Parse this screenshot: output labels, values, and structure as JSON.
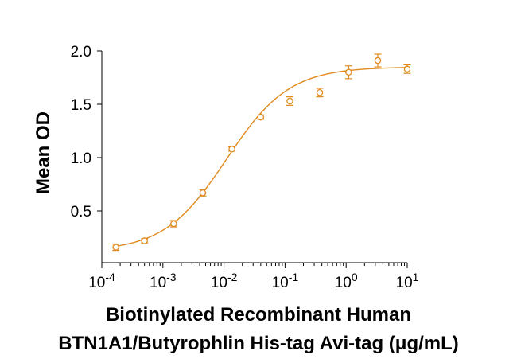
{
  "chart_data": {
    "type": "scatter",
    "title": "",
    "xlabel_line1": "Biotinylated Recombinant Human",
    "xlabel_line2": "BTN1A1/Butyrophlin His-tag Avi-tag (μg/mL)",
    "ylabel": "Mean OD",
    "x_scale": "log",
    "xlim": [
      0.0001,
      10
    ],
    "ylim": [
      0.1,
      2.0
    ],
    "x_ticks": [
      {
        "base": "10",
        "exp": "-4"
      },
      {
        "base": "10",
        "exp": "-3"
      },
      {
        "base": "10",
        "exp": "-2"
      },
      {
        "base": "10",
        "exp": "-1"
      },
      {
        "base": "10",
        "exp": "0"
      },
      {
        "base": "10",
        "exp": "1"
      }
    ],
    "y_ticks": [
      "0.5",
      "1.0",
      "1.5",
      "2.0"
    ],
    "grid": false,
    "color": "#E08A1E",
    "series": [
      {
        "x": [
          0.00017,
          0.0005,
          0.0015,
          0.0045,
          0.0135,
          0.04,
          0.12,
          0.37,
          1.1,
          3.3,
          10
        ],
        "y": [
          0.16,
          0.22,
          0.38,
          0.67,
          1.08,
          1.38,
          1.53,
          1.61,
          1.8,
          1.91,
          1.83
        ],
        "err": [
          0.03,
          0.02,
          0.03,
          0.03,
          0.02,
          0.02,
          0.04,
          0.04,
          0.06,
          0.06,
          0.04
        ]
      }
    ],
    "fit": {
      "bottom": 0.12,
      "top": 1.85,
      "ec50": 0.011,
      "hill": 0.85
    }
  }
}
